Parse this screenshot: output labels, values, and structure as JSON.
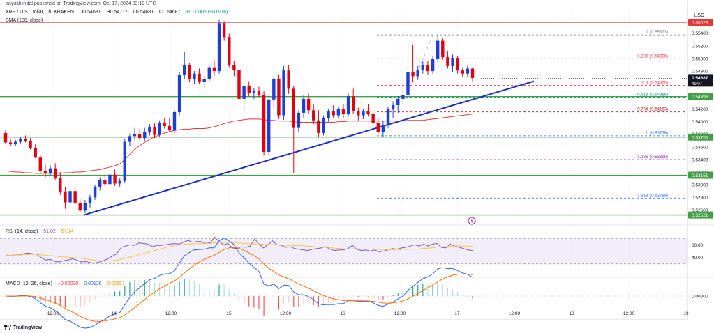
{
  "header": {
    "publisher": "aayushjindal published on TradingView.com, Oct 17, 2024 03:10 UTC",
    "symbol": "XRP / U.S. Dollar, 1h, KRAKEN",
    "open": "O0.54681",
    "high": "H0.54717",
    "low": "L0.54681",
    "close": "C0.54687",
    "change": "+0.00005 (+0.01%)",
    "sma_label": "SMA (100, close)"
  },
  "price_axis": {
    "currency": "USD",
    "ticks": [
      "0.55400",
      "0.55200",
      "0.55000",
      "0.54800",
      "0.54600",
      "0.54400",
      "0.54200",
      "0.54000",
      "0.53800",
      "0.53600",
      "0.53400",
      "0.53200",
      "0.53000",
      "0.52800",
      "0.52600"
    ],
    "current_price": "0.54687",
    "countdown": "49:07"
  },
  "price_levels": [
    {
      "value": 0.55573,
      "label": "0.55573",
      "color": "#e53935",
      "style": "resistance"
    },
    {
      "value": 0.54396,
      "label": "0.54396",
      "color": "#43a047",
      "style": "support"
    },
    {
      "value": 0.53755,
      "label": "0.53755",
      "color": "#43a047",
      "style": "support"
    },
    {
      "value": 0.53151,
      "label": "0.53151",
      "color": "#43a047",
      "style": "support"
    },
    {
      "value": 0.52521,
      "label": "0.52521",
      "color": "#43a047",
      "style": "support"
    }
  ],
  "fib_levels": [
    {
      "ratio": "0",
      "value": 0.55373,
      "color": "#787b86"
    },
    {
      "ratio": "0.236",
      "value": 0.54996,
      "color": "#f23645"
    },
    {
      "ratio": "0.5",
      "value": 0.54575,
      "color": "#f23645"
    },
    {
      "ratio": "0.618",
      "value": 0.54386,
      "color": "#089981"
    },
    {
      "ratio": "0.764",
      "value": 0.54153,
      "color": "#b71c1c"
    },
    {
      "ratio": "1",
      "value": 0.53776,
      "color": "#2962ff"
    },
    {
      "ratio": "1.236",
      "value": 0.53399,
      "color": "#9c27b0"
    },
    {
      "ratio": "1.618",
      "value": 0.52789,
      "color": "#2962ff"
    }
  ],
  "time_axis": [
    "12:00",
    "14",
    "12:00",
    "15",
    "12:00",
    "16",
    "12:00",
    "17",
    "12:00",
    "18",
    "12:00",
    "19"
  ],
  "rsi": {
    "legend": "RSI (14, close)",
    "value": "51.02",
    "ma_value": "57.14",
    "ticks": [
      "60.00",
      "40.00"
    ],
    "values": [
      44,
      43,
      44,
      44,
      46,
      47,
      46,
      45,
      40,
      36,
      37,
      34,
      33,
      35,
      36,
      38,
      36,
      33,
      34,
      32,
      31,
      33,
      35,
      38,
      42,
      46,
      56,
      58,
      60,
      59,
      63,
      62,
      61,
      57,
      59,
      59,
      60,
      61,
      62,
      61,
      64,
      67,
      64,
      65,
      65,
      62,
      63,
      72,
      65,
      60,
      62,
      55,
      54,
      57,
      56,
      58,
      69,
      61,
      55,
      60,
      66,
      60,
      59,
      56,
      57,
      54,
      53,
      52,
      51,
      53,
      54,
      55,
      57,
      53,
      51,
      52,
      52,
      54,
      59,
      53,
      51,
      52,
      50,
      52,
      49,
      50,
      52,
      54,
      53,
      55,
      56,
      58,
      60,
      58,
      61,
      58,
      61,
      62,
      56,
      55,
      61,
      58,
      56,
      54,
      52,
      51
    ]
  },
  "macd": {
    "legend": "MACD (12, 26, close)",
    "macd_value": "−0.00030",
    "signal_value": "0.00126",
    "hist_value": "0.00157",
    "ticks": [
      "0.00000"
    ]
  },
  "chart_data": {
    "type": "candlestick",
    "title": "XRP / U.S. Dollar, 1h, KRAKEN",
    "ylabel": "USD",
    "ylim": [
      0.5245,
      0.5575
    ],
    "candles": [
      {
        "o": 0.5382,
        "h": 0.5386,
        "l": 0.5364,
        "c": 0.5367
      },
      {
        "o": 0.5367,
        "h": 0.5372,
        "l": 0.5361,
        "c": 0.5364
      },
      {
        "o": 0.5364,
        "h": 0.5371,
        "l": 0.5361,
        "c": 0.5368
      },
      {
        "o": 0.5368,
        "h": 0.5376,
        "l": 0.5364,
        "c": 0.5372
      },
      {
        "o": 0.5372,
        "h": 0.5378,
        "l": 0.5367,
        "c": 0.5369
      },
      {
        "o": 0.5369,
        "h": 0.5374,
        "l": 0.5356,
        "c": 0.5358
      },
      {
        "o": 0.5358,
        "h": 0.5364,
        "l": 0.5342,
        "c": 0.5343
      },
      {
        "o": 0.5343,
        "h": 0.5348,
        "l": 0.5319,
        "c": 0.5322
      },
      {
        "o": 0.5322,
        "h": 0.5332,
        "l": 0.5312,
        "c": 0.5318
      },
      {
        "o": 0.5318,
        "h": 0.5331,
        "l": 0.5314,
        "c": 0.5326
      },
      {
        "o": 0.5326,
        "h": 0.5334,
        "l": 0.5308,
        "c": 0.531
      },
      {
        "o": 0.531,
        "h": 0.532,
        "l": 0.5284,
        "c": 0.5288
      },
      {
        "o": 0.5288,
        "h": 0.5296,
        "l": 0.5262,
        "c": 0.5272
      },
      {
        "o": 0.5272,
        "h": 0.5295,
        "l": 0.5268,
        "c": 0.529
      },
      {
        "o": 0.529,
        "h": 0.5298,
        "l": 0.5268,
        "c": 0.5271
      },
      {
        "o": 0.5271,
        "h": 0.5278,
        "l": 0.5257,
        "c": 0.5259
      },
      {
        "o": 0.5259,
        "h": 0.5276,
        "l": 0.5255,
        "c": 0.5271
      },
      {
        "o": 0.5271,
        "h": 0.5284,
        "l": 0.5264,
        "c": 0.528
      },
      {
        "o": 0.528,
        "h": 0.53,
        "l": 0.5276,
        "c": 0.5297
      },
      {
        "o": 0.5297,
        "h": 0.5312,
        "l": 0.5291,
        "c": 0.5307
      },
      {
        "o": 0.5307,
        "h": 0.5317,
        "l": 0.5297,
        "c": 0.5301
      },
      {
        "o": 0.5301,
        "h": 0.532,
        "l": 0.5296,
        "c": 0.5316
      },
      {
        "o": 0.5316,
        "h": 0.5324,
        "l": 0.5298,
        "c": 0.5302
      },
      {
        "o": 0.5302,
        "h": 0.531,
        "l": 0.5297,
        "c": 0.5306
      },
      {
        "o": 0.5306,
        "h": 0.5372,
        "l": 0.5303,
        "c": 0.5368
      },
      {
        "o": 0.5368,
        "h": 0.5381,
        "l": 0.5362,
        "c": 0.5377
      },
      {
        "o": 0.5377,
        "h": 0.539,
        "l": 0.5371,
        "c": 0.538
      },
      {
        "o": 0.538,
        "h": 0.5388,
        "l": 0.5371,
        "c": 0.5374
      },
      {
        "o": 0.5374,
        "h": 0.539,
        "l": 0.5369,
        "c": 0.5384
      },
      {
        "o": 0.5384,
        "h": 0.5396,
        "l": 0.5378,
        "c": 0.5391
      },
      {
        "o": 0.5391,
        "h": 0.5397,
        "l": 0.5374,
        "c": 0.5379
      },
      {
        "o": 0.5379,
        "h": 0.5402,
        "l": 0.5376,
        "c": 0.5398
      },
      {
        "o": 0.5398,
        "h": 0.5406,
        "l": 0.5389,
        "c": 0.5393
      },
      {
        "o": 0.5393,
        "h": 0.5405,
        "l": 0.5384,
        "c": 0.5386
      },
      {
        "o": 0.5386,
        "h": 0.5418,
        "l": 0.5382,
        "c": 0.5415
      },
      {
        "o": 0.5415,
        "h": 0.5478,
        "l": 0.541,
        "c": 0.5474
      },
      {
        "o": 0.5474,
        "h": 0.5511,
        "l": 0.5468,
        "c": 0.5489
      },
      {
        "o": 0.5489,
        "h": 0.5493,
        "l": 0.5463,
        "c": 0.5468
      },
      {
        "o": 0.5468,
        "h": 0.548,
        "l": 0.5459,
        "c": 0.5476
      },
      {
        "o": 0.5476,
        "h": 0.5484,
        "l": 0.546,
        "c": 0.5463
      },
      {
        "o": 0.5463,
        "h": 0.5472,
        "l": 0.5452,
        "c": 0.5468
      },
      {
        "o": 0.5468,
        "h": 0.5489,
        "l": 0.5464,
        "c": 0.5486
      },
      {
        "o": 0.5486,
        "h": 0.5498,
        "l": 0.5472,
        "c": 0.548
      },
      {
        "o": 0.548,
        "h": 0.5562,
        "l": 0.5476,
        "c": 0.5556
      },
      {
        "o": 0.5556,
        "h": 0.5559,
        "l": 0.5528,
        "c": 0.5534
      },
      {
        "o": 0.5534,
        "h": 0.5539,
        "l": 0.5486,
        "c": 0.549
      },
      {
        "o": 0.549,
        "h": 0.5496,
        "l": 0.5472,
        "c": 0.5482
      },
      {
        "o": 0.5482,
        "h": 0.5488,
        "l": 0.5428,
        "c": 0.5436
      },
      {
        "o": 0.5436,
        "h": 0.5462,
        "l": 0.542,
        "c": 0.5456
      },
      {
        "o": 0.5456,
        "h": 0.5464,
        "l": 0.544,
        "c": 0.5446
      },
      {
        "o": 0.5446,
        "h": 0.5453,
        "l": 0.5436,
        "c": 0.5449
      },
      {
        "o": 0.5449,
        "h": 0.5455,
        "l": 0.5439,
        "c": 0.5442
      },
      {
        "o": 0.5442,
        "h": 0.5448,
        "l": 0.5346,
        "c": 0.5352
      },
      {
        "o": 0.5352,
        "h": 0.544,
        "l": 0.5348,
        "c": 0.5435
      },
      {
        "o": 0.5435,
        "h": 0.5472,
        "l": 0.542,
        "c": 0.5468
      },
      {
        "o": 0.5468,
        "h": 0.5475,
        "l": 0.5404,
        "c": 0.541
      },
      {
        "o": 0.541,
        "h": 0.5488,
        "l": 0.5403,
        "c": 0.5481
      },
      {
        "o": 0.5481,
        "h": 0.549,
        "l": 0.5444,
        "c": 0.5452
      },
      {
        "o": 0.5452,
        "h": 0.5456,
        "l": 0.5318,
        "c": 0.539
      },
      {
        "o": 0.539,
        "h": 0.5418,
        "l": 0.5384,
        "c": 0.5414
      },
      {
        "o": 0.5414,
        "h": 0.5442,
        "l": 0.5406,
        "c": 0.5436
      },
      {
        "o": 0.5436,
        "h": 0.5444,
        "l": 0.5412,
        "c": 0.5418
      },
      {
        "o": 0.5418,
        "h": 0.5428,
        "l": 0.5396,
        "c": 0.5402
      },
      {
        "o": 0.5402,
        "h": 0.5418,
        "l": 0.5376,
        "c": 0.5382
      },
      {
        "o": 0.5382,
        "h": 0.541,
        "l": 0.5378,
        "c": 0.5406
      },
      {
        "o": 0.5406,
        "h": 0.542,
        "l": 0.54,
        "c": 0.5416
      },
      {
        "o": 0.5416,
        "h": 0.5426,
        "l": 0.5406,
        "c": 0.541
      },
      {
        "o": 0.541,
        "h": 0.5424,
        "l": 0.5406,
        "c": 0.542
      },
      {
        "o": 0.542,
        "h": 0.5428,
        "l": 0.5406,
        "c": 0.5412
      },
      {
        "o": 0.5412,
        "h": 0.5446,
        "l": 0.5408,
        "c": 0.544
      },
      {
        "o": 0.544,
        "h": 0.5452,
        "l": 0.5412,
        "c": 0.5417
      },
      {
        "o": 0.5417,
        "h": 0.5422,
        "l": 0.5402,
        "c": 0.541
      },
      {
        "o": 0.541,
        "h": 0.542,
        "l": 0.5404,
        "c": 0.5416
      },
      {
        "o": 0.5416,
        "h": 0.5428,
        "l": 0.5408,
        "c": 0.5412
      },
      {
        "o": 0.5412,
        "h": 0.5418,
        "l": 0.5394,
        "c": 0.5398
      },
      {
        "o": 0.5398,
        "h": 0.5406,
        "l": 0.538,
        "c": 0.5384
      },
      {
        "o": 0.5384,
        "h": 0.5402,
        "l": 0.5376,
        "c": 0.5394
      },
      {
        "o": 0.5394,
        "h": 0.5424,
        "l": 0.539,
        "c": 0.542
      },
      {
        "o": 0.542,
        "h": 0.5432,
        "l": 0.5406,
        "c": 0.5426
      },
      {
        "o": 0.5426,
        "h": 0.544,
        "l": 0.5414,
        "c": 0.5436
      },
      {
        "o": 0.5436,
        "h": 0.545,
        "l": 0.5426,
        "c": 0.5442
      },
      {
        "o": 0.5442,
        "h": 0.5484,
        "l": 0.5438,
        "c": 0.5478
      },
      {
        "o": 0.5478,
        "h": 0.5522,
        "l": 0.5462,
        "c": 0.5472
      },
      {
        "o": 0.5472,
        "h": 0.5488,
        "l": 0.5466,
        "c": 0.5482
      },
      {
        "o": 0.5482,
        "h": 0.5496,
        "l": 0.5476,
        "c": 0.549
      },
      {
        "o": 0.549,
        "h": 0.5496,
        "l": 0.5474,
        "c": 0.548
      },
      {
        "o": 0.548,
        "h": 0.5504,
        "l": 0.5476,
        "c": 0.55
      },
      {
        "o": 0.55,
        "h": 0.5537,
        "l": 0.5494,
        "c": 0.5528
      },
      {
        "o": 0.5528,
        "h": 0.5532,
        "l": 0.5498,
        "c": 0.5502
      },
      {
        "o": 0.5502,
        "h": 0.5512,
        "l": 0.5484,
        "c": 0.5488
      },
      {
        "o": 0.5488,
        "h": 0.5506,
        "l": 0.5478,
        "c": 0.5501
      },
      {
        "o": 0.5501,
        "h": 0.5504,
        "l": 0.5476,
        "c": 0.5481
      },
      {
        "o": 0.5481,
        "h": 0.5486,
        "l": 0.547,
        "c": 0.5476
      },
      {
        "o": 0.5476,
        "h": 0.5488,
        "l": 0.5471,
        "c": 0.5484
      },
      {
        "o": 0.5484,
        "h": 0.5486,
        "l": 0.5464,
        "c": 0.5469
      }
    ],
    "sma": [
      0.5322,
      0.5321,
      0.532,
      0.532,
      0.5319,
      0.5319,
      0.5318,
      0.5318,
      0.5318,
      0.5318,
      0.5318,
      0.5318,
      0.5319,
      0.5319,
      0.532,
      0.532,
      0.5321,
      0.5322,
      0.5323,
      0.5324,
      0.5326,
      0.5328,
      0.533,
      0.5333,
      0.534,
      0.5348,
      0.5356,
      0.5362,
      0.5367,
      0.5372,
      0.5376,
      0.5379,
      0.5382,
      0.5384,
      0.5386,
      0.5387,
      0.5388,
      0.5388,
      0.5389,
      0.5389,
      0.5389,
      0.539,
      0.5392,
      0.5394,
      0.5397,
      0.5399,
      0.5401,
      0.5402,
      0.5403,
      0.5404,
      0.5404,
      0.5404,
      0.5403,
      0.5402,
      0.5402,
      0.5401,
      0.5401,
      0.5401,
      0.54,
      0.5399,
      0.5399,
      0.5399,
      0.5399,
      0.5399,
      0.5399,
      0.5399,
      0.5399,
      0.54,
      0.54,
      0.5401,
      0.5401,
      0.5401,
      0.5401,
      0.5401,
      0.5401,
      0.5401,
      0.5401,
      0.5401,
      0.5401,
      0.5401,
      0.5401,
      0.5402,
      0.5402,
      0.5402,
      0.5402,
      0.5403,
      0.5404,
      0.5405,
      0.5406,
      0.5407,
      0.5408,
      0.5409,
      0.541,
      0.5411,
      0.5412
    ]
  }
}
